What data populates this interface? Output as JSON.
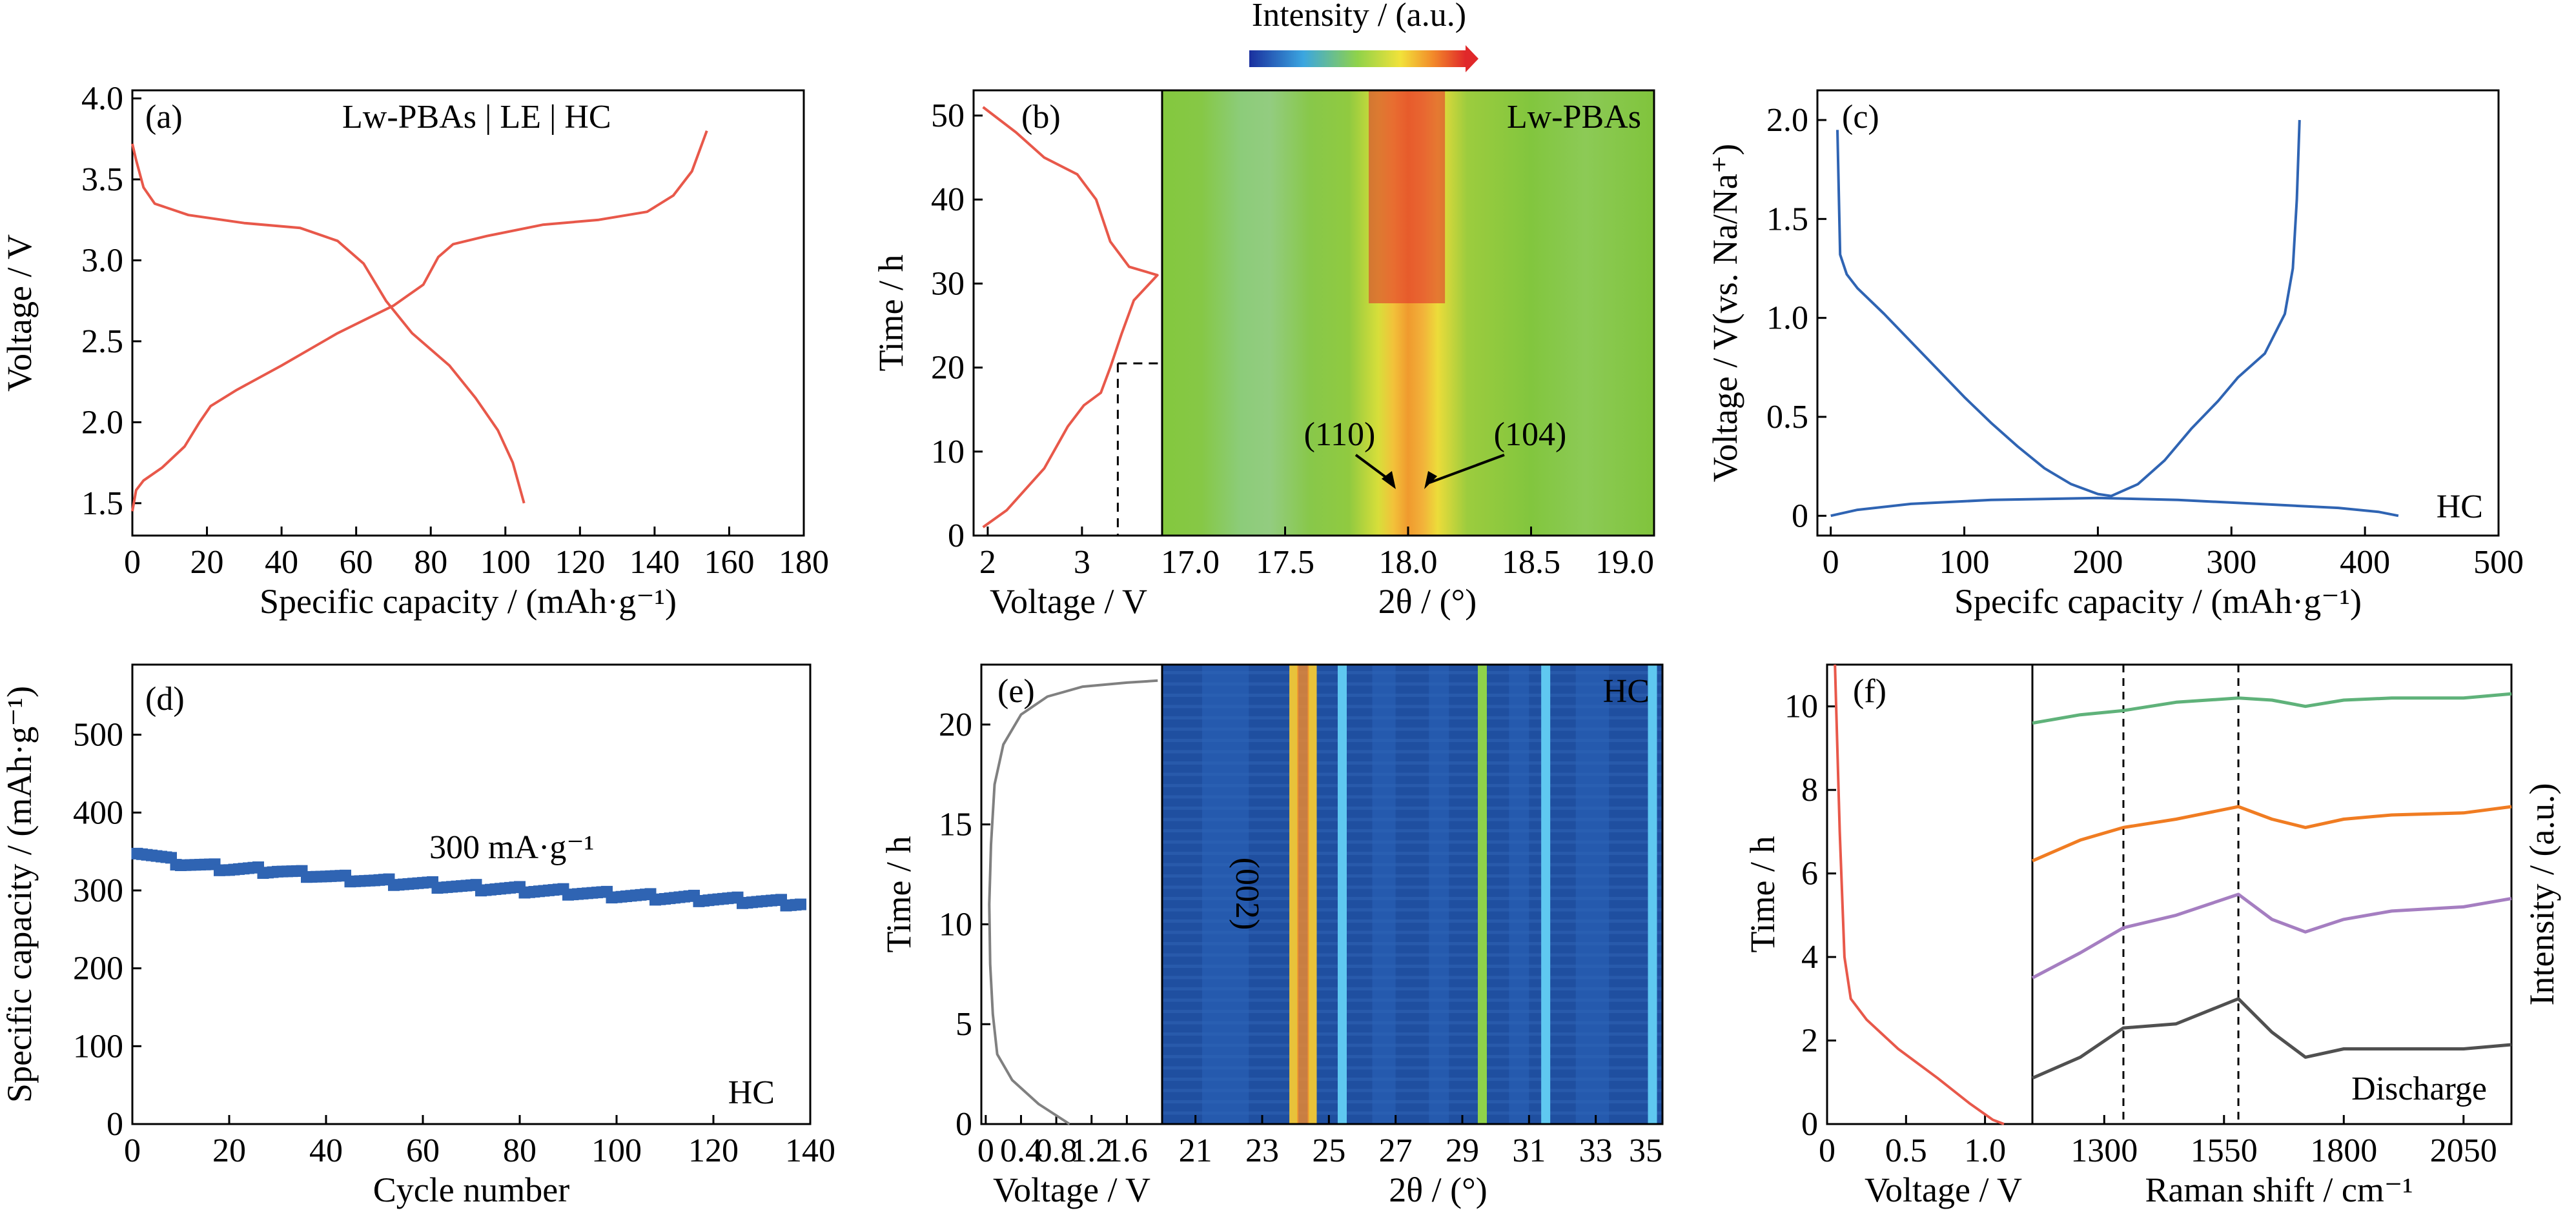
{
  "colorbar": {
    "label": "Intensity / (a.u.)"
  },
  "chart_data": [
    {
      "id": "a",
      "type": "line",
      "panel_label": "(a)",
      "annotation": "Lw-PBAs | LE | HC",
      "xlabel": "Specific capacity / (mAh·g⁻¹)",
      "ylabel": "Voltage / V",
      "xlim": [
        0,
        180
      ],
      "ylim": [
        1.3,
        4.05
      ],
      "xticks": [
        0,
        20,
        40,
        60,
        80,
        100,
        120,
        140,
        160,
        180
      ],
      "xticklabels": [
        "0",
        "20",
        "40",
        "60",
        "80",
        "100",
        "120",
        "140",
        "160",
        "180"
      ],
      "yticks": [
        1.5,
        2.0,
        2.5,
        3.0,
        3.5,
        4.0
      ],
      "yticklabels": [
        "1.5",
        "2.0",
        "2.5",
        "3.0",
        "3.5",
        "4.0"
      ],
      "color": "#e8584a",
      "series": [
        {
          "points": [
            [
              0,
              1.45
            ],
            [
              1,
              1.58
            ],
            [
              3,
              1.64
            ],
            [
              8,
              1.72
            ],
            [
              14,
              1.85
            ],
            [
              18,
              2.0
            ],
            [
              21,
              2.1
            ],
            [
              28,
              2.2
            ],
            [
              40,
              2.35
            ],
            [
              55,
              2.55
            ],
            [
              70,
              2.72
            ],
            [
              78,
              2.85
            ],
            [
              82,
              3.02
            ],
            [
              86,
              3.1
            ],
            [
              95,
              3.15
            ],
            [
              110,
              3.22
            ],
            [
              125,
              3.25
            ],
            [
              138,
              3.3
            ],
            [
              145,
              3.4
            ],
            [
              150,
              3.55
            ],
            [
              154,
              3.8
            ]
          ]
        },
        {
          "points": [
            [
              0,
              3.72
            ],
            [
              1,
              3.62
            ],
            [
              3,
              3.45
            ],
            [
              6,
              3.35
            ],
            [
              15,
              3.28
            ],
            [
              30,
              3.23
            ],
            [
              45,
              3.2
            ],
            [
              55,
              3.12
            ],
            [
              62,
              2.98
            ],
            [
              68,
              2.75
            ],
            [
              75,
              2.55
            ],
            [
              85,
              2.35
            ],
            [
              92,
              2.15
            ],
            [
              98,
              1.95
            ],
            [
              102,
              1.75
            ],
            [
              105,
              1.5
            ]
          ]
        }
      ]
    },
    {
      "id": "b",
      "type": "line",
      "panel_label": "(b)",
      "xlabel": "Voltage / V",
      "ylabel": "Time / h",
      "xlim": [
        1.85,
        3.85
      ],
      "ylim": [
        0,
        53
      ],
      "xticks": [
        2,
        3
      ],
      "xticklabels": [
        "2",
        "3"
      ],
      "yticks": [
        0,
        10,
        20,
        30,
        40,
        50
      ],
      "yticklabels": [
        "0",
        "10",
        "20",
        "30",
        "40",
        "50"
      ],
      "color": "#e8584a",
      "series": [
        {
          "points": [
            [
              1.95,
              1
            ],
            [
              2.2,
              3
            ],
            [
              2.6,
              8
            ],
            [
              2.85,
              13
            ],
            [
              3.02,
              15.5
            ],
            [
              3.2,
              17
            ],
            [
              3.3,
              20
            ],
            [
              3.42,
              24
            ],
            [
              3.55,
              28
            ],
            [
              3.8,
              31
            ],
            [
              3.5,
              32
            ],
            [
              3.3,
              35
            ],
            [
              3.15,
              40
            ],
            [
              2.95,
              43
            ],
            [
              2.6,
              45
            ],
            [
              2.3,
              48
            ],
            [
              1.95,
              51
            ]
          ]
        }
      ]
    },
    {
      "id": "b-map",
      "type": "heatmap",
      "annotation": "Lw-PBAs",
      "xlabel": "2θ / (°)",
      "xlim": [
        17.0,
        19.0
      ],
      "ylim": [
        0,
        53
      ],
      "xticks": [
        17.0,
        17.5,
        18.0,
        18.5,
        19.0
      ],
      "xticklabels": [
        "17.0",
        "17.5",
        "18.0",
        "18.5",
        "19.0"
      ],
      "peaks": [
        {
          "label": "(110)",
          "x": 17.95
        },
        {
          "label": "(104)",
          "x": 18.05
        }
      ]
    },
    {
      "id": "c",
      "type": "line",
      "panel_label": "(c)",
      "annotation": "HC",
      "xlabel": "Specifc capacity / (mAh·g⁻¹)",
      "ylabel": "Voltage / V(vs. Na/Na⁺)",
      "xlim": [
        -10,
        500
      ],
      "ylim": [
        -0.1,
        2.15
      ],
      "xticks": [
        0,
        100,
        200,
        300,
        400,
        500
      ],
      "xticklabels": [
        "0",
        "100",
        "200",
        "300",
        "400",
        "500"
      ],
      "yticks": [
        0,
        0.5,
        1.0,
        1.5,
        2.0
      ],
      "yticklabels": [
        "0",
        "0.5",
        "1.0",
        "1.5",
        "2.0"
      ],
      "color": "#2f64b3",
      "series": [
        {
          "points": [
            [
              5,
              1.95
            ],
            [
              7,
              1.32
            ],
            [
              12,
              1.22
            ],
            [
              20,
              1.15
            ],
            [
              40,
              1.02
            ],
            [
              60,
              0.88
            ],
            [
              80,
              0.74
            ],
            [
              100,
              0.6
            ],
            [
              120,
              0.47
            ],
            [
              140,
              0.35
            ],
            [
              160,
              0.24
            ],
            [
              180,
              0.16
            ],
            [
              200,
              0.11
            ],
            [
              210,
              0.1
            ],
            [
              230,
              0.16
            ],
            [
              250,
              0.28
            ],
            [
              270,
              0.44
            ],
            [
              290,
              0.58
            ],
            [
              305,
              0.7
            ],
            [
              325,
              0.82
            ],
            [
              340,
              1.02
            ],
            [
              346,
              1.25
            ],
            [
              349,
              1.6
            ],
            [
              351,
              2.0
            ]
          ]
        },
        {
          "points": [
            [
              0,
              0
            ],
            [
              20,
              0.03
            ],
            [
              60,
              0.06
            ],
            [
              120,
              0.08
            ],
            [
              200,
              0.09
            ],
            [
              260,
              0.08
            ],
            [
              320,
              0.06
            ],
            [
              380,
              0.04
            ],
            [
              410,
              0.02
            ],
            [
              425,
              0.0
            ]
          ]
        }
      ]
    },
    {
      "id": "d",
      "type": "scatter",
      "panel_label": "(d)",
      "annotation": "HC",
      "rate_label": "300 mA·g⁻¹",
      "xlabel": "Cycle number",
      "ylabel": "Specific capacity / (mAh·g⁻¹)",
      "xlim": [
        0,
        140
      ],
      "ylim": [
        0,
        590
      ],
      "xticks": [
        0,
        20,
        40,
        60,
        80,
        100,
        120,
        140
      ],
      "xticklabels": [
        "0",
        "20",
        "40",
        "60",
        "80",
        "100",
        "120",
        "140"
      ],
      "yticks": [
        0,
        100,
        200,
        300,
        400,
        500
      ],
      "yticklabels": [
        "0",
        "100",
        "200",
        "300",
        "400",
        "500"
      ],
      "color": "#2f64b3",
      "series": [
        {
          "points": [
            [
              1,
              350
            ],
            [
              10,
              335
            ],
            [
              20,
              328
            ],
            [
              30,
              325
            ],
            [
              40,
              318
            ],
            [
              50,
              312
            ],
            [
              60,
              308
            ],
            [
              70,
              304
            ],
            [
              80,
              301
            ],
            [
              90,
              298
            ],
            [
              100,
              294
            ],
            [
              110,
              291
            ],
            [
              120,
              289
            ],
            [
              130,
              286
            ],
            [
              138,
              283
            ]
          ]
        }
      ]
    },
    {
      "id": "e",
      "type": "line",
      "panel_label": "(e)",
      "xlabel": "Voltage / V",
      "ylabel": "Time / h",
      "xlim": [
        -0.05,
        2.0
      ],
      "ylim": [
        0,
        23
      ],
      "xticks": [
        0,
        0.4,
        0.8,
        1.2,
        1.6
      ],
      "xticklabels": [
        "0",
        "0.4",
        "0.8",
        "1.2",
        "1.6"
      ],
      "yticks": [
        0,
        5,
        10,
        15,
        20
      ],
      "yticklabels": [
        "0",
        "5",
        "10",
        "15",
        "20"
      ],
      "color": "#808080",
      "series": [
        {
          "points": [
            [
              0.95,
              0
            ],
            [
              0.6,
              1
            ],
            [
              0.3,
              2.2
            ],
            [
              0.13,
              3.5
            ],
            [
              0.08,
              5.5
            ],
            [
              0.05,
              8
            ],
            [
              0.04,
              11
            ],
            [
              0.06,
              14
            ],
            [
              0.1,
              17
            ],
            [
              0.2,
              19
            ],
            [
              0.4,
              20.5
            ],
            [
              0.7,
              21.4
            ],
            [
              1.1,
              21.9
            ],
            [
              1.6,
              22.1
            ],
            [
              1.95,
              22.2
            ]
          ]
        }
      ]
    },
    {
      "id": "e-map",
      "type": "heatmap",
      "annotation": "HC",
      "peak_label": "(002)",
      "xlabel": "2θ / (°)",
      "xlim": [
        20,
        35
      ],
      "ylim": [
        0,
        23
      ],
      "xticks": [
        21,
        23,
        25,
        27,
        29,
        31,
        33,
        35
      ],
      "xticklabels": [
        "21",
        "23",
        "25",
        "27",
        "29",
        "31",
        "33",
        "35"
      ],
      "lines": [
        {
          "x": 23.95,
          "color": "#e8c23a"
        },
        {
          "x": 24.5,
          "color": "#e8c23a"
        },
        {
          "x": 25.4,
          "color": "#5fc8f0"
        },
        {
          "x": 29.6,
          "color": "#8fd24a"
        },
        {
          "x": 31.5,
          "color": "#5fc8f0"
        },
        {
          "x": 34.7,
          "color": "#5fc8f0"
        }
      ]
    },
    {
      "id": "f",
      "type": "line",
      "panel_label": "(f)",
      "xlabel": "Voltage / V",
      "ylabel": "Time / h",
      "xlim": [
        0,
        1.3
      ],
      "ylim": [
        0,
        11
      ],
      "xticks": [
        0,
        0.5,
        1.0
      ],
      "xticklabels": [
        "0",
        "0.5",
        "1.0"
      ],
      "yticks": [
        0,
        2,
        4,
        6,
        8,
        10
      ],
      "yticklabels": [
        "0",
        "2",
        "4",
        "6",
        "8",
        "10"
      ],
      "color": "#e8584a",
      "series": [
        {
          "points": [
            [
              0.05,
              11
            ],
            [
              0.08,
              7
            ],
            [
              0.11,
              4
            ],
            [
              0.15,
              3
            ],
            [
              0.25,
              2.5
            ],
            [
              0.45,
              1.8
            ],
            [
              0.7,
              1.1
            ],
            [
              0.9,
              0.5
            ],
            [
              1.05,
              0.1
            ],
            [
              1.12,
              0
            ]
          ]
        }
      ]
    },
    {
      "id": "f-raman",
      "type": "line",
      "annotation": "Discharge",
      "xlabel": "Raman shift / cm⁻¹",
      "ylabel": "Intensity / (a.u.)",
      "xlim": [
        1150,
        2150
      ],
      "ylim": [
        0,
        11
      ],
      "xticks": [
        1300,
        1550,
        1800,
        2050
      ],
      "xticklabels": [
        "1300",
        "1550",
        "1800",
        "2050"
      ],
      "vlines": [
        1340,
        1580
      ],
      "series": [
        {
          "color": "#505050",
          "points": [
            [
              1150,
              1.1
            ],
            [
              1250,
              1.6
            ],
            [
              1340,
              2.3
            ],
            [
              1450,
              2.4
            ],
            [
              1580,
              3.0
            ],
            [
              1650,
              2.2
            ],
            [
              1720,
              1.6
            ],
            [
              1800,
              1.8
            ],
            [
              1900,
              1.8
            ],
            [
              2050,
              1.8
            ],
            [
              2150,
              1.9
            ]
          ]
        },
        {
          "color": "#a57ec1",
          "points": [
            [
              1150,
              3.5
            ],
            [
              1250,
              4.1
            ],
            [
              1340,
              4.7
            ],
            [
              1450,
              5.0
            ],
            [
              1580,
              5.5
            ],
            [
              1650,
              4.9
            ],
            [
              1720,
              4.6
            ],
            [
              1800,
              4.9
            ],
            [
              1900,
              5.1
            ],
            [
              2050,
              5.2
            ],
            [
              2150,
              5.4
            ]
          ]
        },
        {
          "color": "#f07c22",
          "points": [
            [
              1150,
              6.3
            ],
            [
              1250,
              6.8
            ],
            [
              1340,
              7.1
            ],
            [
              1450,
              7.3
            ],
            [
              1580,
              7.6
            ],
            [
              1650,
              7.3
            ],
            [
              1720,
              7.1
            ],
            [
              1800,
              7.3
            ],
            [
              1900,
              7.4
            ],
            [
              2050,
              7.45
            ],
            [
              2150,
              7.6
            ]
          ]
        },
        {
          "color": "#5fb27a",
          "points": [
            [
              1150,
              9.6
            ],
            [
              1250,
              9.8
            ],
            [
              1340,
              9.9
            ],
            [
              1450,
              10.1
            ],
            [
              1580,
              10.2
            ],
            [
              1650,
              10.15
            ],
            [
              1720,
              10.0
            ],
            [
              1800,
              10.15
            ],
            [
              1900,
              10.2
            ],
            [
              2050,
              10.2
            ],
            [
              2150,
              10.3
            ]
          ]
        }
      ]
    }
  ]
}
